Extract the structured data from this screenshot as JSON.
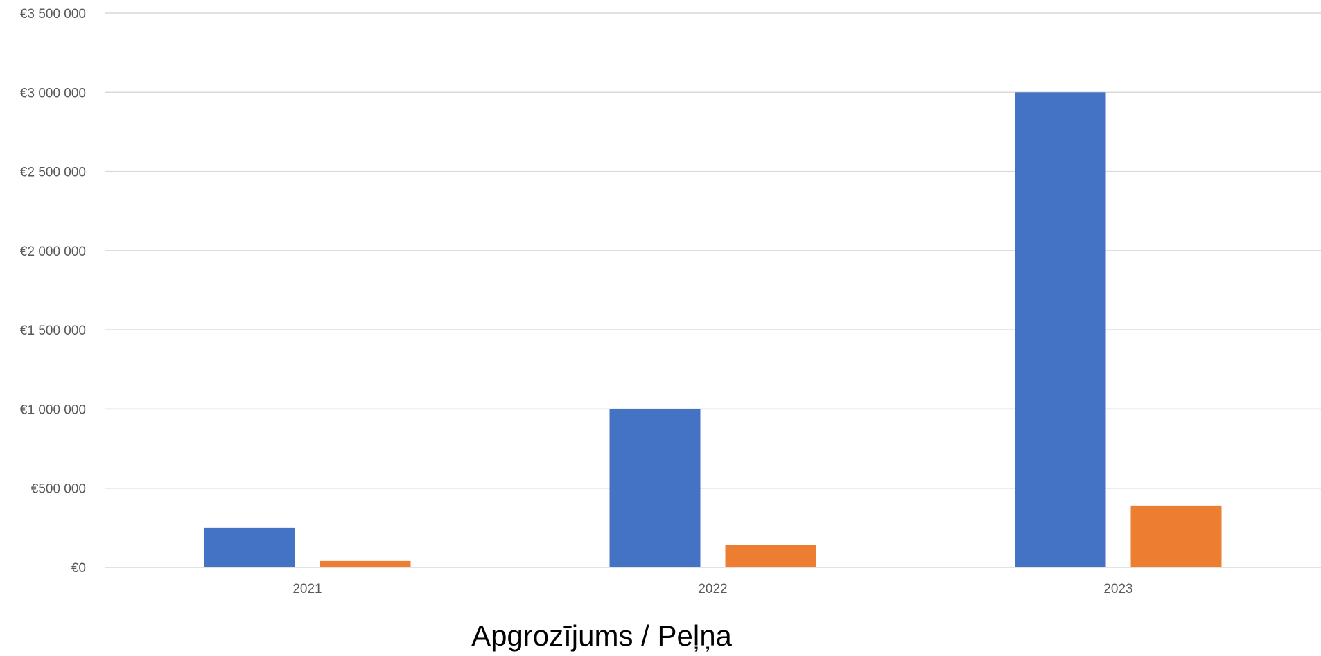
{
  "chart_data": {
    "type": "bar",
    "title": "Apgrozījums / Peļņa",
    "xlabel": "",
    "ylabel": "",
    "categories": [
      "2021",
      "2022",
      "2023"
    ],
    "series": [
      {
        "values": [
          250000,
          1000000,
          3000000
        ],
        "color": "#4472C4"
      },
      {
        "values": [
          40000,
          140000,
          390000
        ],
        "color": "#ED7D31"
      }
    ],
    "ylim": [
      0,
      3500000
    ],
    "yticks": [
      {
        "value": 0,
        "label": "€0"
      },
      {
        "value": 500000,
        "label": "€500 000"
      },
      {
        "value": 1000000,
        "label": "€1 000 000"
      },
      {
        "value": 1500000,
        "label": "€1 500 000"
      },
      {
        "value": 2000000,
        "label": "€2 000 000"
      },
      {
        "value": 2500000,
        "label": "€2 500 000"
      },
      {
        "value": 3000000,
        "label": "€3 000 000"
      },
      {
        "value": 3500000,
        "label": "€3 500 000"
      }
    ],
    "grid": true,
    "legend": "none",
    "gridline_color": "#D9D9D9"
  }
}
